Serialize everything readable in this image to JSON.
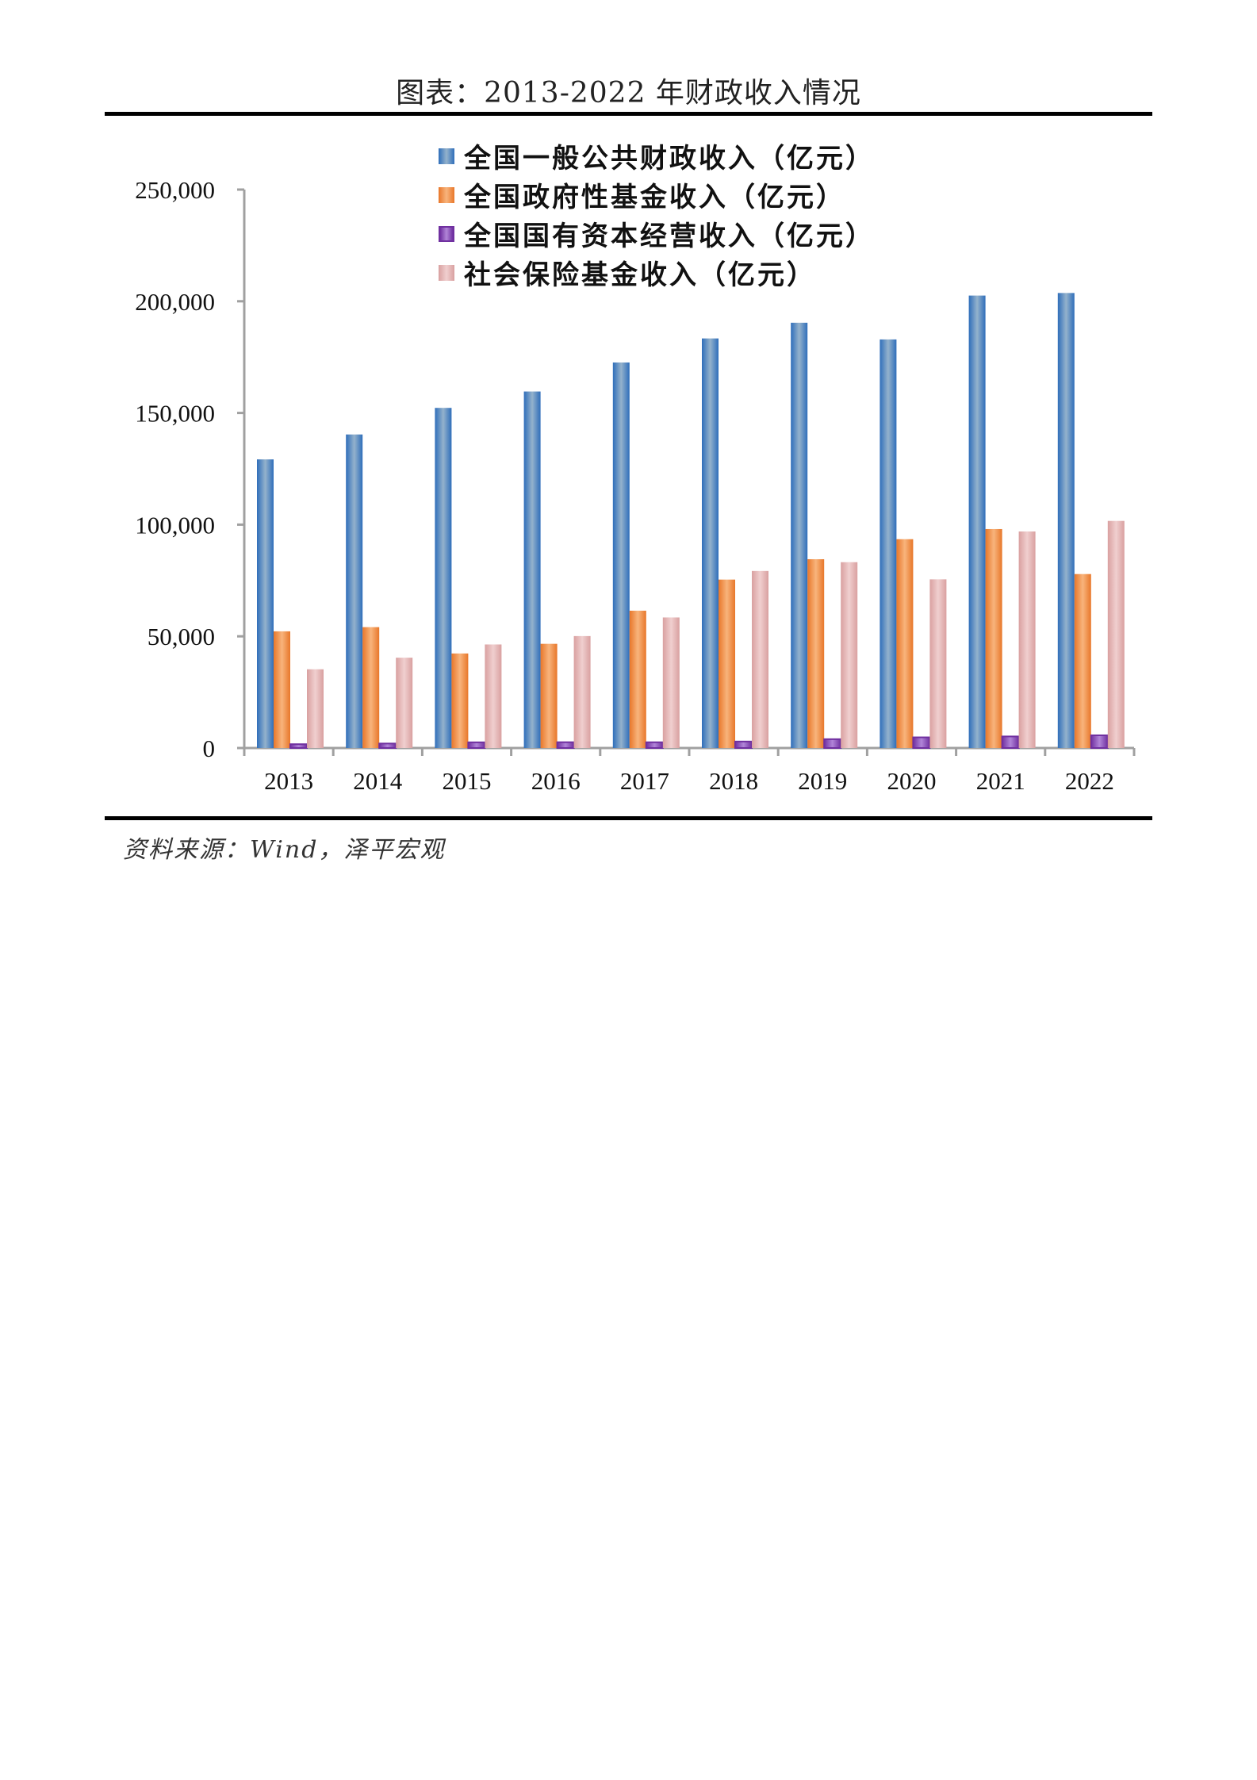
{
  "figure": {
    "title": "图表：2013-2022 年财政收入情况",
    "source": "资料来源：Wind，泽平宏观"
  },
  "chart_data": {
    "type": "bar",
    "title": "图表：2013-2022 年财政收入情况",
    "xlabel": "",
    "ylabel": "",
    "ylim": [
      0,
      250000
    ],
    "yticks": [
      0,
      50000,
      100000,
      150000,
      200000,
      250000
    ],
    "ytick_labels": [
      "0",
      "50,000",
      "100,000",
      "150,000",
      "200,000",
      "250,000"
    ],
    "grid": false,
    "legend_position": "top-center",
    "categories": [
      "2013",
      "2014",
      "2015",
      "2016",
      "2017",
      "2018",
      "2019",
      "2020",
      "2021",
      "2022"
    ],
    "series": [
      {
        "name": "全国一般公共财政收入（亿元）",
        "color": "#2F6EBA",
        "light": "#94B2CC",
        "values": [
          129210,
          140370,
          152269,
          159605,
          172593,
          183360,
          190390,
          182914,
          202555,
          203703
        ]
      },
      {
        "name": "全国政府性基金收入（亿元）",
        "color": "#E8772A",
        "light": "#F8B47C",
        "values": [
          52239,
          54114,
          42330,
          46643,
          61480,
          75405,
          84518,
          93489,
          98024,
          77879
        ]
      },
      {
        "name": "全国国有资本经营收入（亿元）",
        "color": "#7030A0",
        "light": "#B185D8",
        "values": [
          1713,
          2008,
          2551,
          2602,
          2581,
          2906,
          3960,
          4778,
          5180,
          5689
        ]
      },
      {
        "name": "社会保险基金收入（亿元）",
        "color": "#D9A0A0",
        "light": "#F0CFCF",
        "values": [
          35253,
          40438,
          46354,
          50112,
          58438,
          79254,
          83196,
          75513,
          96936,
          101670
        ]
      }
    ]
  }
}
